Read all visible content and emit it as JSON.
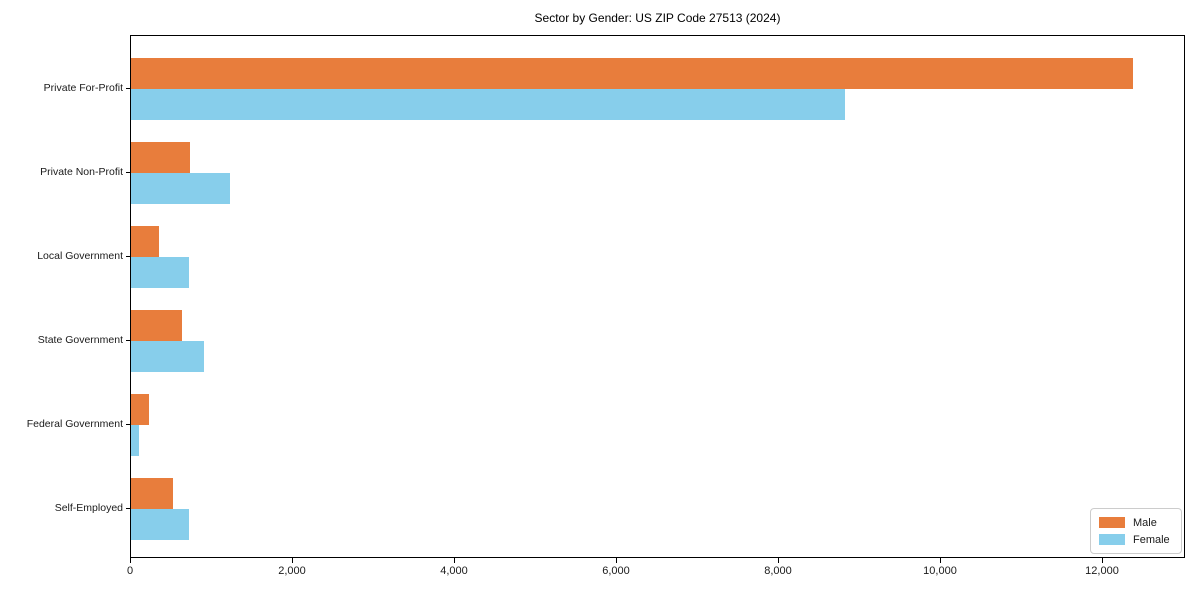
{
  "chart_data": {
    "type": "bar",
    "orientation": "horizontal",
    "title": "Sector by Gender: US ZIP Code 27513 (2024)",
    "categories": [
      "Private For-Profit",
      "Private Non-Profit",
      "Local Government",
      "State Government",
      "Federal Government",
      "Self-Employed"
    ],
    "series": [
      {
        "name": "Male",
        "color": "#E87D3C",
        "values": [
          12370,
          730,
          340,
          630,
          220,
          520
        ]
      },
      {
        "name": "Female",
        "color": "#87CEEB",
        "values": [
          8820,
          1220,
          710,
          900,
          100,
          710
        ]
      }
    ],
    "xlabel": "",
    "ylabel": "",
    "xlim": [
      0,
      13000
    ],
    "xticks": [
      0,
      2000,
      4000,
      6000,
      8000,
      10000,
      12000
    ],
    "xtick_labels": [
      "0",
      "2,000",
      "4,000",
      "6,000",
      "8,000",
      "10,000",
      "12,000"
    ],
    "legend_position": "lower right",
    "grid": false
  }
}
